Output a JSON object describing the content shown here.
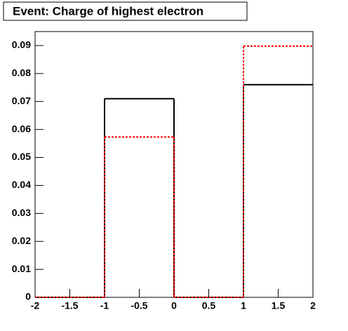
{
  "chart_data": {
    "type": "histogram",
    "title": "Event: Charge of highest electron",
    "bins": [
      -2,
      -1,
      0,
      1,
      2
    ],
    "series": [
      {
        "color": "#000000",
        "values": [
          0,
          0.071,
          0,
          0.076
        ]
      },
      {
        "color": "#ff0000",
        "dashed": true,
        "values": [
          0,
          0.0573,
          0,
          0.0898
        ]
      }
    ],
    "xlim": [
      -2,
      2
    ],
    "xticks": [
      -2,
      -1.5,
      -1,
      -0.5,
      0,
      0.5,
      1,
      1.5,
      2
    ],
    "ylim": [
      0,
      0.095
    ],
    "yticks": [
      0,
      0.01,
      0.02,
      0.03,
      0.04,
      0.05,
      0.06,
      0.07,
      0.08,
      0.09
    ]
  }
}
